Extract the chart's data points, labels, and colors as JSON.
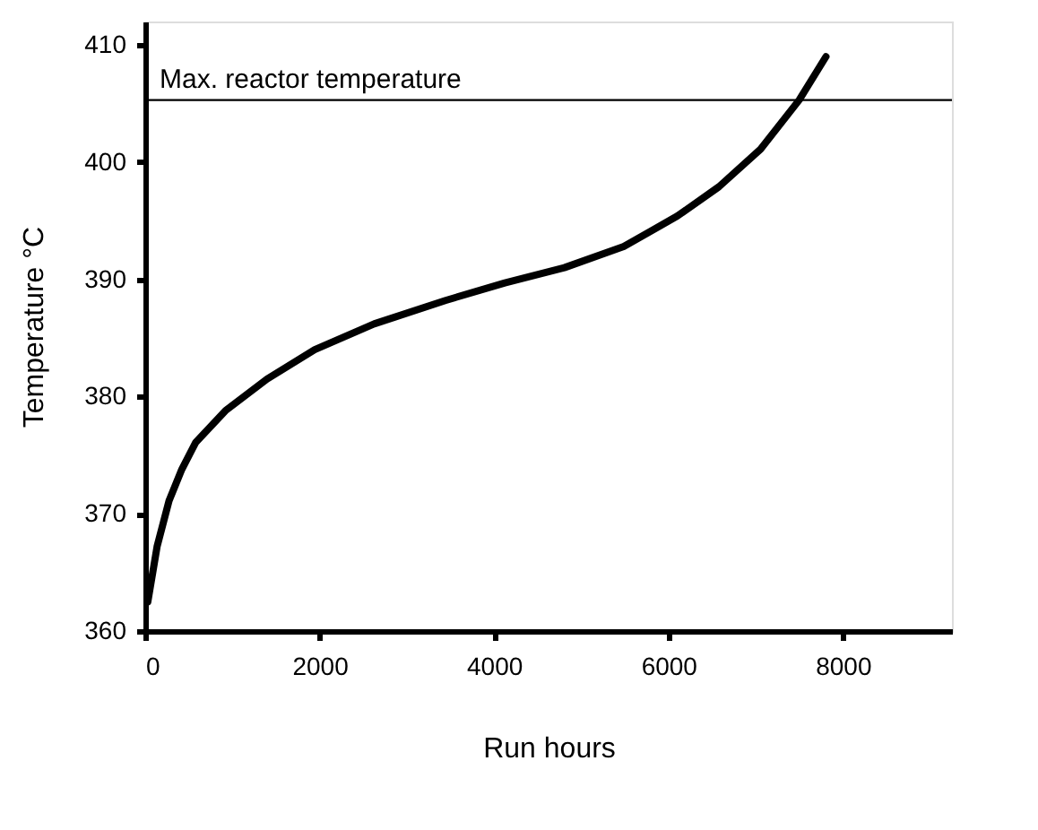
{
  "chart_data": {
    "type": "line",
    "xlabel": "Run hours",
    "ylabel": "Temperature °C",
    "x": [
      30,
      136,
      273,
      420,
      580,
      920,
      1397,
      1943,
      2624,
      3442,
      4124,
      4806,
      5487,
      6101,
      6578,
      7055,
      7498,
      7805
    ],
    "series": [
      {
        "color": "#000000",
        "values": [
          362.5,
          367.2,
          371.1,
          373.8,
          376.1,
          378.8,
          381.5,
          384.0,
          386.2,
          388.2,
          389.7,
          391.0,
          392.8,
          395.4,
          397.9,
          401.1,
          405.3,
          409.0
        ]
      }
    ],
    "xlim": [
      0,
      9250
    ],
    "ylim": [
      360,
      412
    ],
    "xticks": [
      0,
      2000,
      4000,
      6000,
      8000
    ],
    "yticks": [
      360,
      370,
      380,
      390,
      400,
      410
    ],
    "ref_lines": [
      {
        "axis": "y",
        "value": 405.3,
        "label": "Max. reactor temperature",
        "color": "#000000"
      }
    ],
    "grid": false,
    "marker": "none",
    "line_style": "solid"
  }
}
